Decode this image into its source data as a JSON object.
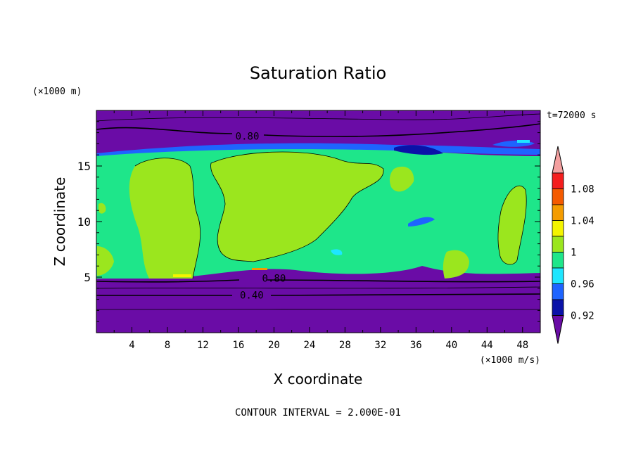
{
  "chart_data": {
    "type": "heatmap",
    "title": "Saturation Ratio",
    "xlabel": "X coordinate",
    "ylabel": "Z coordinate",
    "x_unit": "(×1000 m/s)",
    "y_unit": "(×1000 m)",
    "time_label": "t=72000 s",
    "footer": "CONTOUR INTERVAL = 2.000E-01",
    "xlim": [
      0,
      50
    ],
    "ylim": [
      0,
      20
    ],
    "x_ticks": [
      4,
      8,
      12,
      16,
      20,
      24,
      28,
      32,
      36,
      40,
      44,
      48
    ],
    "y_ticks": [
      5,
      10,
      15
    ],
    "contour_labels": [
      {
        "text": "0.80",
        "x": 17.0,
        "z": 17.7
      },
      {
        "text": "0.80",
        "x": 20.0,
        "z": 4.9
      },
      {
        "text": "0.40",
        "x": 17.5,
        "z": 3.4
      }
    ],
    "colorbar": {
      "levels": [
        0.9,
        0.92,
        0.94,
        0.96,
        0.98,
        1.0,
        1.02,
        1.04,
        1.06,
        1.08,
        1.1
      ],
      "tick_labels": [
        "0.92",
        "0.96",
        "1",
        "1.04",
        "1.08"
      ],
      "colors": [
        "#6a0ca6",
        "#0a12a8",
        "#1e64ff",
        "#1ee6ff",
        "#1ee68a",
        "#9be61e",
        "#f4f400",
        "#f49c00",
        "#f45a00",
        "#f41e1e",
        "#f4a0a0"
      ]
    }
  }
}
